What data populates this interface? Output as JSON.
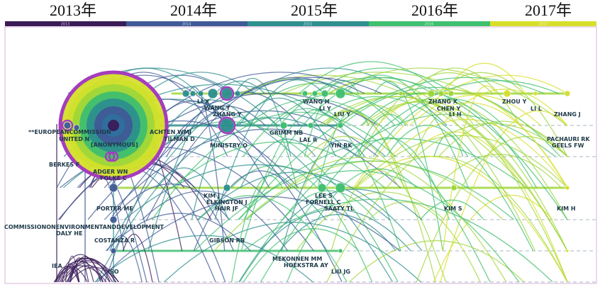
{
  "timeline": {
    "years": [
      {
        "label": "2013年",
        "band": "2013",
        "color": "#3b1b57"
      },
      {
        "label": "2014年",
        "band": "2014",
        "color": "#3f5a96"
      },
      {
        "label": "2015年",
        "band": "2015",
        "color": "#2d8f8e"
      },
      {
        "label": "2016年",
        "band": "2016",
        "color": "#3fbf6f"
      },
      {
        "label": "2017年",
        "band": "2017",
        "color": "#d6df2a"
      }
    ]
  },
  "colors": {
    "frame": "#d9b3d9",
    "cluster_line": "#a8b4c4",
    "highlight_ring": "#a43dbd",
    "arc_palette": [
      "#3b1b57",
      "#3f5a96",
      "#2d8f8e",
      "#3fbf6f",
      "#9fd63a",
      "#d6df2a"
    ]
  },
  "nodes": [
    {
      "id": "li-x",
      "label": "LI X",
      "year": 2014.5
    },
    {
      "id": "wang-y",
      "label": "WANG Y",
      "year": 2014.7
    },
    {
      "id": "zhang-y",
      "label": "ZHANG Y",
      "year": 2014.8
    },
    {
      "id": "wang-h",
      "label": "WANG H",
      "year": 2015.6
    },
    {
      "id": "li-y",
      "label": "LI Y",
      "year": 2015.7
    },
    {
      "id": "liu-y",
      "label": "LIU Y",
      "year": 2015.8
    },
    {
      "id": "zhang-x",
      "label": "ZHANG X",
      "year": 2016.6
    },
    {
      "id": "chen-y",
      "label": "CHEN Y",
      "year": 2016.65
    },
    {
      "id": "li-h",
      "label": "LI H",
      "year": 2016.7
    },
    {
      "id": "zhou-y",
      "label": "ZHOU Y",
      "year": 2017.2
    },
    {
      "id": "li-l",
      "label": "LI L",
      "year": 2017.35
    },
    {
      "id": "zhang-j",
      "label": "ZHANG J",
      "year": 2017.6
    },
    {
      "id": "european-commission",
      "label": "**EUROPEANCOMMISSION",
      "year": 2013.0
    },
    {
      "id": "united-n",
      "label": "UNITED N",
      "year": 2013.05
    },
    {
      "id": "anonymous",
      "label": "[ANONYMOUS]",
      "year": 2013.3
    },
    {
      "id": "achten-wmj",
      "label": "ACHTEN WMJ",
      "year": 2014.2
    },
    {
      "id": "tilman-d",
      "label": "TILMAN D",
      "year": 2014.25
    },
    {
      "id": "ministry-o",
      "label": "MINISTRY O",
      "year": 2014.8
    },
    {
      "id": "grimm-nb",
      "label": "GRIMM NB",
      "year": 2015.3
    },
    {
      "id": "lal-r",
      "label": "LAL R",
      "year": 2015.4
    },
    {
      "id": "yin-rk",
      "label": "YIN RK",
      "year": 2015.8
    },
    {
      "id": "pachauri-rk",
      "label": "PACHAURI RK",
      "year": 2017.6
    },
    {
      "id": "geels-fw",
      "label": "GEELS FW",
      "year": 2017.6
    },
    {
      "id": "berkes-f",
      "label": "BERKES F",
      "year": 2013.0
    },
    {
      "id": "adger-wn",
      "label": "ADGER WN",
      "year": 2013.3
    },
    {
      "id": "folke-c",
      "label": "FOLKE C",
      "year": 2013.35
    },
    {
      "id": "kim-j",
      "label": "KIM J",
      "year": 2014.55
    },
    {
      "id": "elkington-j",
      "label": "ELKINGTON J",
      "year": 2014.8
    },
    {
      "id": "hair-jf",
      "label": "HAIR JF",
      "year": 2014.8
    },
    {
      "id": "lee-s",
      "label": "LEE S",
      "year": 2015.5
    },
    {
      "id": "fornell-c",
      "label": "FORNELL C",
      "year": 2015.55
    },
    {
      "id": "saaty-tl",
      "label": "SAATY TL",
      "year": 2015.7
    },
    {
      "id": "kim-s",
      "label": "KIM S",
      "year": 2016.7
    },
    {
      "id": "kim-h",
      "label": "KIM H",
      "year": 2017.6
    },
    {
      "id": "porter-me",
      "label": "PORTER ME",
      "year": 2013.3
    },
    {
      "id": "commission-env",
      "label": "COMMISSIONONENVIRONMENTANDDEVELOPMENT",
      "year": 2013.0
    },
    {
      "id": "daly-he",
      "label": "DALY HE",
      "year": 2013.0
    },
    {
      "id": "costanza-r",
      "label": "COSTANZA R",
      "year": 2013.3
    },
    {
      "id": "gibson-rb",
      "label": "GIBSON RB",
      "year": 2014.8
    },
    {
      "id": "mekonnen-mm",
      "label": "MEKONNEN MM",
      "year": 2015.2
    },
    {
      "id": "hoekstra-ay",
      "label": "HOEKSTRA AY",
      "year": 2015.25
    },
    {
      "id": "liu-jg",
      "label": "LIU JG",
      "year": 2015.7
    },
    {
      "id": "iea",
      "label": "IEA",
      "year": 2013.0
    },
    {
      "id": "iso",
      "label": "ISO",
      "year": 2013.3
    }
  ]
}
